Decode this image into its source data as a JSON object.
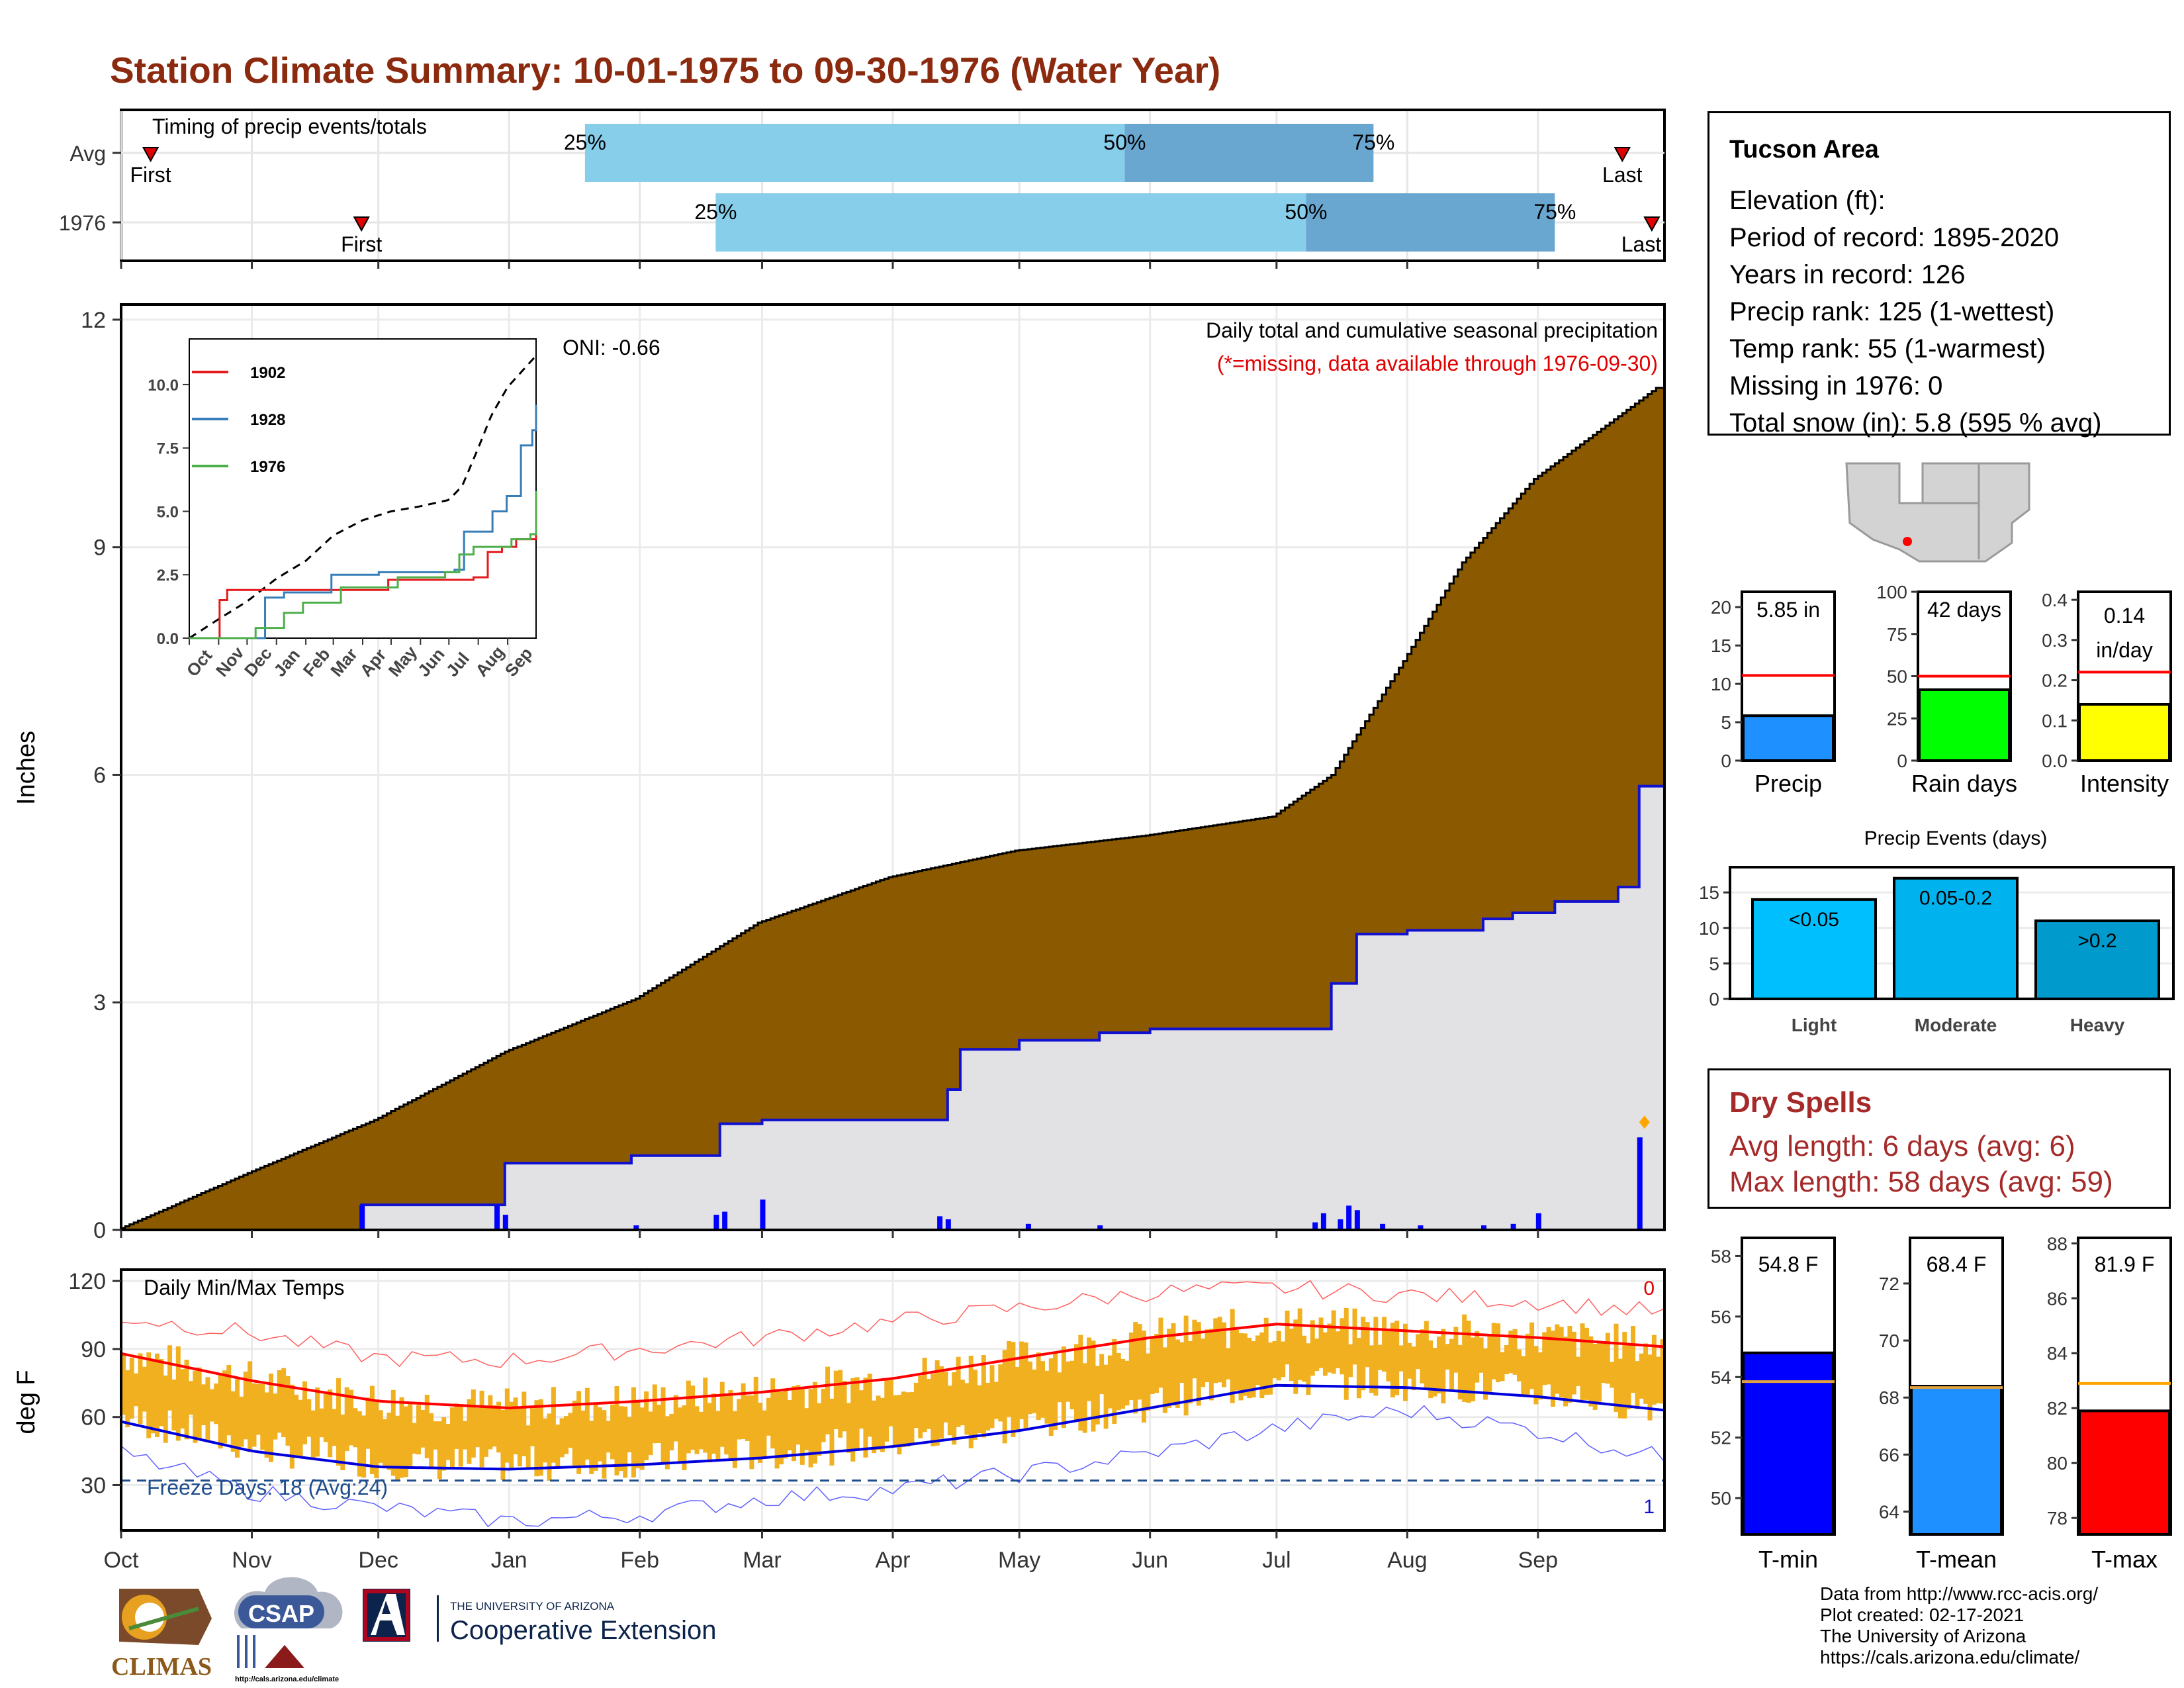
{
  "title": "Station Climate Summary: 10-01-1975 to 09-30-1976 (Water Year)",
  "timing": {
    "label": "Timing of precip events/totals",
    "rows": [
      {
        "name": "Avg",
        "first": "First",
        "last": "Last",
        "p25": "25%",
        "p50": "50%",
        "p75": "75%",
        "first_date": "1975-10-08",
        "p25_date": "1976-01-19",
        "p50_date": "1976-05-26",
        "p75_date": "1976-07-24",
        "last_date": "1976-09-21"
      },
      {
        "name": "1976",
        "first": "First",
        "last": "Last",
        "p25": "25%",
        "p50": "50%",
        "p75": "75%",
        "first_date": "1975-11-27",
        "p25_date": "1976-02-19",
        "p50_date": "1976-07-08",
        "p75_date": "1976-09-05",
        "last_date": "1976-09-28"
      }
    ]
  },
  "station": {
    "name": "Tucson Area",
    "lines": [
      "Elevation (ft):",
      "Period of record: 1895-2020",
      "Years in record: 126",
      "Precip rank: 125 (1-wettest)",
      "Temp rank: 55 (1-warmest)",
      "Missing in 1976: 0",
      "Total snow (in): 5.8 (595 % avg)"
    ]
  },
  "precip_panel": {
    "annotation_title": "Daily total and cumulative seasonal precipitation",
    "annotation_missing": "(*=missing, data available through 1976-09-30)",
    "oni": "ONI: -0.66",
    "ylabel": "Inches"
  },
  "temp_panel": {
    "title": "Daily Min/Max Temps",
    "ylabel": "deg F",
    "freeze": "Freeze Days: 18 (Avg:24)",
    "count_top": "0",
    "count_bottom": "1"
  },
  "x_months": [
    "Oct",
    "Nov",
    "Dec",
    "Jan",
    "Feb",
    "Mar",
    "Apr",
    "May",
    "Jun",
    "Jul",
    "Aug",
    "Sep"
  ],
  "bar_panels": {
    "precip": {
      "label": "Precip",
      "value_text": "5.85 in",
      "value": 5.85,
      "avg": 11.1,
      "ymax": 22,
      "ticks": [
        0,
        5,
        10,
        15,
        20
      ],
      "color": "#1e90ff"
    },
    "raindays": {
      "label": "Rain days",
      "value_text": "42 days",
      "value": 42,
      "avg": 50,
      "ymax": 100,
      "ticks": [
        0,
        25,
        50,
        75,
        100
      ],
      "color": "#00ff00"
    },
    "intensity": {
      "label": "Intensity",
      "value_text": "0.14",
      "value_text2": "in/day",
      "value": 0.14,
      "avg": 0.22,
      "ymax": 0.42,
      "ticks": [
        0.0,
        0.1,
        0.2,
        0.3,
        0.4
      ],
      "color": "#ffff00"
    }
  },
  "events": {
    "title": "Precip Events (days)",
    "ticks": [
      0,
      5,
      10,
      15
    ],
    "bars": [
      {
        "cat": "Light",
        "label": "<0.05",
        "value": 14,
        "color": "#00bfff"
      },
      {
        "cat": "Moderate",
        "label": "0.05-0.2",
        "value": 17,
        "color": "#00b2ee"
      },
      {
        "cat": "Heavy",
        "label": ">0.2",
        "value": 11,
        "color": "#009acd"
      }
    ]
  },
  "dry_spells": {
    "title": "Dry Spells",
    "avg": "Avg length: 6 days (avg: 6)",
    "max": "Max length: 58 days (avg: 59)"
  },
  "temp_bars": {
    "tmin": {
      "label": "T-min",
      "value_text": "54.8 F",
      "value": 54.8,
      "avg": 53.85,
      "ymin": 48.8,
      "ymax": 58.6,
      "ticks": [
        50,
        52,
        54,
        56,
        58
      ],
      "color": "#0000ff"
    },
    "tmean": {
      "label": "T-mean",
      "value_text": "68.4 F",
      "value": 68.4,
      "avg": 68.35,
      "ymin": 63.2,
      "ymax": 73.6,
      "ticks": [
        64,
        66,
        68,
        70,
        72
      ],
      "color": "#1e90ff"
    },
    "tmax": {
      "label": "T-max",
      "value_text": "81.9 F",
      "value": 81.9,
      "avg": 82.9,
      "ymin": 77.4,
      "ymax": 88.2,
      "ticks": [
        78,
        80,
        82,
        84,
        86,
        88
      ],
      "color": "#ff0000"
    }
  },
  "inset": {
    "series": [
      {
        "name": "1902",
        "color": "#e41a1c"
      },
      {
        "name": "1928",
        "color": "#377eb8"
      },
      {
        "name": "1976",
        "color": "#4daf4a"
      }
    ],
    "months": [
      "Oct",
      "Nov",
      "Dec",
      "Jan",
      "Feb",
      "Mar",
      "Apr",
      "May",
      "Jun",
      "Jul",
      "Aug",
      "Sep"
    ],
    "yticks": [
      "0.0",
      "2.5",
      "5.0",
      "7.5",
      "10.0"
    ]
  },
  "footer": [
    "Data from http://www.rcc-acis.org/",
    "Plot created: 02-17-2021",
    "The University of Arizona",
    "https://cals.arizona.edu/climate/"
  ],
  "logos": {
    "climas": "CLIMAS",
    "csap": "CSAP",
    "csap_url": "http://cals.arizona.edu/climate",
    "ua_small": "THE UNIVERSITY OF ARIZONA",
    "ua_big": "Cooperative Extension"
  },
  "chart_data": [
    {
      "type": "area",
      "title": "Daily total and cumulative seasonal precipitation",
      "ylabel": "Inches",
      "ylim": [
        0,
        12
      ],
      "yticks": [
        0,
        3,
        6,
        9,
        12
      ],
      "series": [
        {
          "name": "Average cumulative",
          "x": [
            "10-01",
            "11-01",
            "12-01",
            "01-01",
            "02-01",
            "03-01",
            "04-01",
            "05-01",
            "06-01",
            "07-01",
            "07-15",
            "08-01",
            "08-15",
            "09-01",
            "09-30"
          ],
          "values": [
            0,
            0.75,
            1.45,
            2.35,
            3.05,
            4.05,
            4.65,
            5.0,
            5.2,
            5.45,
            6.0,
            7.5,
            8.8,
            9.9,
            11.1
          ]
        },
        {
          "name": "1976 cumulative",
          "x": [
            "10-01",
            "11-27",
            "12-31",
            "01-30",
            "02-20",
            "03-01",
            "04-14",
            "04-17",
            "05-01",
            "05-20",
            "06-01",
            "07-10",
            "07-14",
            "07-20",
            "08-01",
            "08-19",
            "08-26",
            "09-05",
            "09-20",
            "09-25",
            "09-30"
          ],
          "values": [
            0,
            0.33,
            0.88,
            0.98,
            1.4,
            1.45,
            1.85,
            2.38,
            2.5,
            2.6,
            2.65,
            2.65,
            3.25,
            3.9,
            3.95,
            4.1,
            4.18,
            4.33,
            4.52,
            5.85,
            5.85
          ]
        }
      ],
      "daily_1976": [
        {
          "date": "11-27",
          "value": 0.33
        },
        {
          "date": "12-31",
          "value": 0.2
        },
        {
          "date": "12-29",
          "value": 0.32
        },
        {
          "date": "01-31",
          "value": 0.06
        },
        {
          "date": "02-19",
          "value": 0.2
        },
        {
          "date": "02-21",
          "value": 0.24
        },
        {
          "date": "03-01",
          "value": 0.4
        },
        {
          "date": "04-12",
          "value": 0.18
        },
        {
          "date": "04-14",
          "value": 0.14
        },
        {
          "date": "05-03",
          "value": 0.08
        },
        {
          "date": "05-20",
          "value": 0.06
        },
        {
          "date": "07-10",
          "value": 0.1
        },
        {
          "date": "07-12",
          "value": 0.22
        },
        {
          "date": "07-16",
          "value": 0.14
        },
        {
          "date": "07-18",
          "value": 0.32
        },
        {
          "date": "07-20",
          "value": 0.26
        },
        {
          "date": "07-26",
          "value": 0.08
        },
        {
          "date": "08-04",
          "value": 0.06
        },
        {
          "date": "08-19",
          "value": 0.06
        },
        {
          "date": "08-26",
          "value": 0.08
        },
        {
          "date": "09-01",
          "value": 0.22
        },
        {
          "date": "09-25",
          "value": 1.22
        }
      ]
    },
    {
      "type": "line",
      "title": "Daily Min/Max Temps",
      "ylabel": "deg F",
      "ylim": [
        10,
        125
      ],
      "yticks": [
        30,
        60,
        90,
        120
      ],
      "freeze_line": 32,
      "x": [
        "10-01",
        "11-01",
        "12-01",
        "01-01",
        "02-01",
        "03-01",
        "04-01",
        "05-01",
        "06-01",
        "07-01",
        "08-01",
        "09-01",
        "09-30"
      ],
      "series": [
        {
          "name": "Average max",
          "values": [
            88,
            76,
            67,
            64,
            67,
            71,
            77,
            86,
            95,
            101,
            98,
            95,
            91
          ]
        },
        {
          "name": "Average min",
          "values": [
            58,
            45,
            38,
            37,
            39,
            42,
            47,
            54,
            64,
            74,
            73,
            69,
            63
          ]
        },
        {
          "name": "Record max",
          "values": [
            104,
            97,
            86,
            85,
            90,
            95,
            102,
            108,
            115,
            117,
            114,
            111,
            106
          ]
        },
        {
          "name": "Record min",
          "values": [
            44,
            27,
            20,
            14,
            17,
            24,
            28,
            35,
            44,
            55,
            63,
            54,
            42
          ]
        }
      ]
    }
  ]
}
